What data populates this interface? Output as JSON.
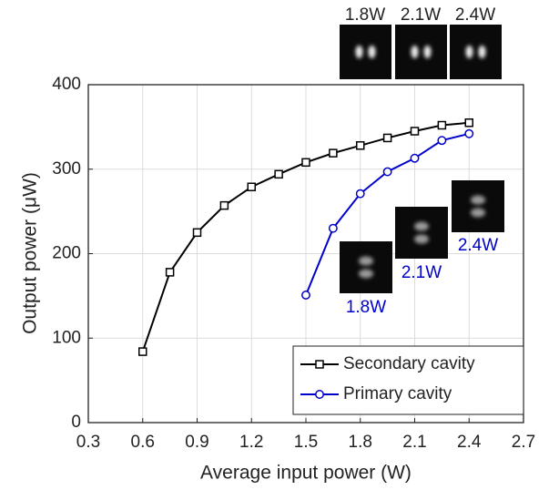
{
  "chart_data": {
    "type": "line",
    "x_label": "Average input power (W)",
    "y_label": "Output power (μW)",
    "xlim": [
      0.3,
      2.7
    ],
    "xticks": [
      0.3,
      0.6,
      0.9,
      1.2,
      1.5,
      1.8,
      2.1,
      2.4,
      2.7
    ],
    "ylim": [
      0,
      400
    ],
    "yticks": [
      0,
      100,
      200,
      300,
      400
    ],
    "grid": true,
    "legend_position": "lower right",
    "series": [
      {
        "name": "Secondary cavity",
        "color": "#000000",
        "marker": "square",
        "x": [
          0.6,
          0.75,
          0.9,
          1.05,
          1.2,
          1.35,
          1.5,
          1.65,
          1.8,
          1.95,
          2.1,
          2.25,
          2.4
        ],
        "values": [
          84,
          178,
          225,
          257,
          279,
          294,
          308,
          319,
          328,
          337,
          345,
          352,
          355
        ]
      },
      {
        "name": "Primary cavity",
        "color": "#0000cc",
        "marker": "circle",
        "x": [
          1.5,
          1.65,
          1.8,
          1.95,
          2.1,
          2.25,
          2.4
        ],
        "values": [
          151,
          230,
          271,
          297,
          313,
          334,
          342
        ]
      }
    ],
    "annotations_secondary": [
      "1.8W",
      "2.1W",
      "2.4W"
    ],
    "annotations_primary": [
      "1.8W",
      "2.1W",
      "2.4W"
    ]
  }
}
